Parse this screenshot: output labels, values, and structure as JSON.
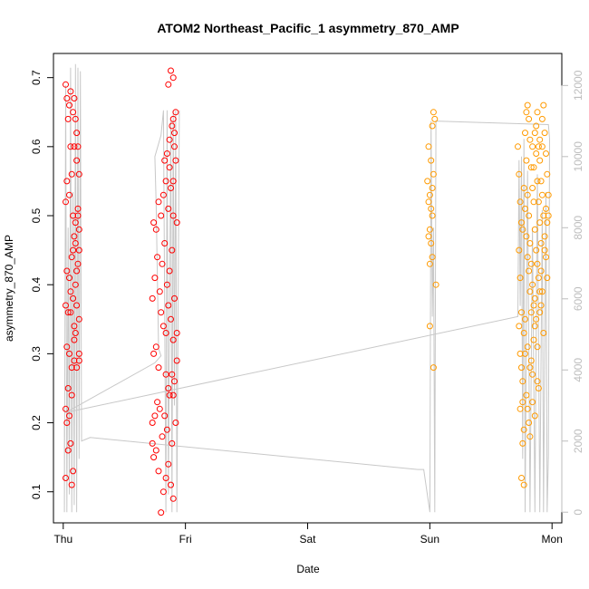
{
  "chart_data": {
    "type": "scatter",
    "title": "ATOM2 Northeast_Pacific_1 asymmetry_870_AMP",
    "xlabel": "Date",
    "ylabel": "asymmetry_870_AMP",
    "x_ticks": [
      "Thu",
      "Fri",
      "Sat",
      "Sun",
      "Mon"
    ],
    "x_range_days": [
      -0.08,
      4.08
    ],
    "ylim": [
      0.055,
      0.735
    ],
    "y_ticks": [
      0.1,
      0.2,
      0.3,
      0.4,
      0.5,
      0.6,
      0.7
    ],
    "y2lim": [
      -300,
      12900
    ],
    "y2_ticks": [
      0,
      2000,
      4000,
      6000,
      8000,
      10000,
      12000
    ],
    "colors": {
      "series_red": "#ff0000",
      "series_orange": "#ff9a00",
      "track": "#c8c8c8",
      "axis": "#000000",
      "axis_right": "#bdbdbd"
    },
    "series": [
      {
        "color": "#ff0000",
        "points": [
          [
            0.02,
            0.69
          ],
          [
            0.03,
            0.67
          ],
          [
            0.05,
            0.66
          ],
          [
            0.04,
            0.64
          ],
          [
            0.06,
            0.68
          ],
          [
            0.08,
            0.65
          ],
          [
            0.09,
            0.67
          ],
          [
            0.1,
            0.64
          ],
          [
            0.11,
            0.62
          ],
          [
            0.03,
            0.55
          ],
          [
            0.05,
            0.53
          ],
          [
            0.07,
            0.56
          ],
          [
            0.08,
            0.5
          ],
          [
            0.1,
            0.49
          ],
          [
            0.12,
            0.5
          ],
          [
            0.13,
            0.48
          ],
          [
            0.02,
            0.52
          ],
          [
            0.03,
            0.42
          ],
          [
            0.05,
            0.41
          ],
          [
            0.07,
            0.44
          ],
          [
            0.09,
            0.47
          ],
          [
            0.1,
            0.4
          ],
          [
            0.12,
            0.43
          ],
          [
            0.13,
            0.35
          ],
          [
            0.02,
            0.37
          ],
          [
            0.04,
            0.36
          ],
          [
            0.06,
            0.36
          ],
          [
            0.08,
            0.38
          ],
          [
            0.09,
            0.34
          ],
          [
            0.11,
            0.37
          ],
          [
            0.13,
            0.3
          ],
          [
            0.03,
            0.31
          ],
          [
            0.05,
            0.3
          ],
          [
            0.07,
            0.28
          ],
          [
            0.09,
            0.29
          ],
          [
            0.11,
            0.28
          ],
          [
            0.13,
            0.29
          ],
          [
            0.02,
            0.22
          ],
          [
            0.03,
            0.2
          ],
          [
            0.05,
            0.21
          ],
          [
            0.04,
            0.16
          ],
          [
            0.06,
            0.17
          ],
          [
            0.08,
            0.13
          ],
          [
            0.02,
            0.12
          ],
          [
            0.07,
            0.11
          ],
          [
            0.12,
            0.6
          ],
          [
            0.11,
            0.58
          ],
          [
            0.13,
            0.56
          ],
          [
            0.09,
            0.6
          ],
          [
            0.1,
            0.46
          ],
          [
            0.12,
            0.51
          ],
          [
            0.08,
            0.45
          ],
          [
            0.06,
            0.39
          ],
          [
            0.1,
            0.33
          ],
          [
            0.04,
            0.25
          ],
          [
            0.07,
            0.24
          ],
          [
            0.09,
            0.32
          ],
          [
            0.11,
            0.42
          ],
          [
            0.06,
            0.6
          ],
          [
            0.13,
            0.45
          ],
          [
            0.73,
            0.17
          ],
          [
            0.74,
            0.15
          ],
          [
            0.76,
            0.16
          ],
          [
            0.78,
            0.13
          ],
          [
            0.8,
            0.07
          ],
          [
            0.82,
            0.1
          ],
          [
            0.84,
            0.12
          ],
          [
            0.86,
            0.14
          ],
          [
            0.88,
            0.11
          ],
          [
            0.9,
            0.09
          ],
          [
            0.73,
            0.2
          ],
          [
            0.75,
            0.21
          ],
          [
            0.77,
            0.23
          ],
          [
            0.79,
            0.22
          ],
          [
            0.81,
            0.18
          ],
          [
            0.83,
            0.21
          ],
          [
            0.85,
            0.19
          ],
          [
            0.87,
            0.24
          ],
          [
            0.89,
            0.17
          ],
          [
            0.92,
            0.2
          ],
          [
            0.74,
            0.3
          ],
          [
            0.76,
            0.31
          ],
          [
            0.78,
            0.28
          ],
          [
            0.8,
            0.36
          ],
          [
            0.82,
            0.34
          ],
          [
            0.84,
            0.33
          ],
          [
            0.86,
            0.37
          ],
          [
            0.88,
            0.35
          ],
          [
            0.9,
            0.32
          ],
          [
            0.93,
            0.29
          ],
          [
            0.73,
            0.38
          ],
          [
            0.75,
            0.41
          ],
          [
            0.77,
            0.44
          ],
          [
            0.79,
            0.39
          ],
          [
            0.81,
            0.43
          ],
          [
            0.83,
            0.46
          ],
          [
            0.85,
            0.4
          ],
          [
            0.87,
            0.42
          ],
          [
            0.89,
            0.45
          ],
          [
            0.91,
            0.38
          ],
          [
            0.74,
            0.49
          ],
          [
            0.76,
            0.48
          ],
          [
            0.78,
            0.52
          ],
          [
            0.8,
            0.5
          ],
          [
            0.82,
            0.53
          ],
          [
            0.84,
            0.55
          ],
          [
            0.86,
            0.51
          ],
          [
            0.88,
            0.54
          ],
          [
            0.9,
            0.5
          ],
          [
            0.93,
            0.49
          ],
          [
            0.83,
            0.58
          ],
          [
            0.85,
            0.59
          ],
          [
            0.87,
            0.61
          ],
          [
            0.89,
            0.63
          ],
          [
            0.9,
            0.64
          ],
          [
            0.91,
            0.62
          ],
          [
            0.92,
            0.65
          ],
          [
            0.86,
            0.69
          ],
          [
            0.9,
            0.7
          ],
          [
            0.88,
            0.71
          ],
          [
            0.91,
            0.6
          ],
          [
            0.87,
            0.57
          ],
          [
            0.9,
            0.55
          ],
          [
            0.92,
            0.58
          ],
          [
            0.89,
            0.27
          ],
          [
            0.91,
            0.26
          ],
          [
            0.86,
            0.25
          ],
          [
            0.84,
            0.27
          ],
          [
            0.93,
            0.33
          ],
          [
            0.9,
            0.24
          ]
        ]
      },
      {
        "color": "#ff9a00",
        "points": [
          [
            2.98,
            0.55
          ],
          [
            2.99,
            0.52
          ],
          [
            3.0,
            0.53
          ],
          [
            3.01,
            0.51
          ],
          [
            3.02,
            0.5
          ],
          [
            3.0,
            0.48
          ],
          [
            3.01,
            0.46
          ],
          [
            2.99,
            0.47
          ],
          [
            3.02,
            0.44
          ],
          [
            3.0,
            0.43
          ],
          [
            3.01,
            0.58
          ],
          [
            2.99,
            0.6
          ],
          [
            3.03,
            0.56
          ],
          [
            3.02,
            0.63
          ],
          [
            3.03,
            0.65
          ],
          [
            3.04,
            0.64
          ],
          [
            3.0,
            0.34
          ],
          [
            3.05,
            0.4
          ],
          [
            3.03,
            0.28
          ],
          [
            3.02,
            0.54
          ],
          [
            3.72,
            0.6
          ],
          [
            3.73,
            0.56
          ],
          [
            3.74,
            0.52
          ],
          [
            3.75,
            0.49
          ],
          [
            3.73,
            0.45
          ],
          [
            3.74,
            0.41
          ],
          [
            3.75,
            0.36
          ],
          [
            3.73,
            0.34
          ],
          [
            3.74,
            0.3
          ],
          [
            3.75,
            0.28
          ],
          [
            3.76,
            0.26
          ],
          [
            3.77,
            0.19
          ],
          [
            3.76,
            0.17
          ],
          [
            3.75,
            0.12
          ],
          [
            3.77,
            0.11
          ],
          [
            3.78,
            0.62
          ],
          [
            3.79,
            0.58
          ],
          [
            3.8,
            0.53
          ],
          [
            3.81,
            0.5
          ],
          [
            3.82,
            0.46
          ],
          [
            3.83,
            0.43
          ],
          [
            3.84,
            0.4
          ],
          [
            3.85,
            0.37
          ],
          [
            3.86,
            0.34
          ],
          [
            3.79,
            0.65
          ],
          [
            3.8,
            0.66
          ],
          [
            3.81,
            0.64
          ],
          [
            3.82,
            0.61
          ],
          [
            3.83,
            0.57
          ],
          [
            3.84,
            0.54
          ],
          [
            3.85,
            0.52
          ],
          [
            3.86,
            0.48
          ],
          [
            3.87,
            0.45
          ],
          [
            3.88,
            0.43
          ],
          [
            3.89,
            0.41
          ],
          [
            3.9,
            0.39
          ],
          [
            3.91,
            0.37
          ],
          [
            3.87,
            0.63
          ],
          [
            3.88,
            0.65
          ],
          [
            3.89,
            0.6
          ],
          [
            3.9,
            0.58
          ],
          [
            3.91,
            0.55
          ],
          [
            3.92,
            0.53
          ],
          [
            3.93,
            0.5
          ],
          [
            3.94,
            0.47
          ],
          [
            3.95,
            0.44
          ],
          [
            3.96,
            0.41
          ],
          [
            3.92,
            0.64
          ],
          [
            3.93,
            0.66
          ],
          [
            3.94,
            0.62
          ],
          [
            3.95,
            0.59
          ],
          [
            3.96,
            0.56
          ],
          [
            3.97,
            0.53
          ],
          [
            3.77,
            0.33
          ],
          [
            3.78,
            0.3
          ],
          [
            3.79,
            0.24
          ],
          [
            3.8,
            0.22
          ],
          [
            3.81,
            0.2
          ],
          [
            3.82,
            0.18
          ],
          [
            3.83,
            0.29
          ],
          [
            3.84,
            0.27
          ],
          [
            3.85,
            0.32
          ],
          [
            3.86,
            0.38
          ],
          [
            3.87,
            0.35
          ],
          [
            3.88,
            0.31
          ],
          [
            3.89,
            0.25
          ],
          [
            3.9,
            0.36
          ],
          [
            3.91,
            0.42
          ],
          [
            3.92,
            0.39
          ],
          [
            3.93,
            0.33
          ],
          [
            3.94,
            0.45
          ],
          [
            3.95,
            0.51
          ],
          [
            3.96,
            0.49
          ],
          [
            3.97,
            0.5
          ],
          [
            3.76,
            0.48
          ],
          [
            3.77,
            0.54
          ],
          [
            3.78,
            0.51
          ],
          [
            3.79,
            0.47
          ],
          [
            3.8,
            0.44
          ],
          [
            3.81,
            0.42
          ],
          [
            3.82,
            0.39
          ],
          [
            3.83,
            0.36
          ],
          [
            3.84,
            0.6
          ],
          [
            3.85,
            0.57
          ],
          [
            3.86,
            0.62
          ],
          [
            3.87,
            0.59
          ],
          [
            3.88,
            0.55
          ],
          [
            3.89,
            0.52
          ],
          [
            3.9,
            0.49
          ],
          [
            3.91,
            0.46
          ],
          [
            3.74,
            0.22
          ],
          [
            3.76,
            0.23
          ],
          [
            3.78,
            0.35
          ],
          [
            3.8,
            0.31
          ],
          [
            3.82,
            0.28
          ],
          [
            3.84,
            0.23
          ],
          [
            3.86,
            0.21
          ],
          [
            3.88,
            0.26
          ],
          [
            3.9,
            0.61
          ],
          [
            3.92,
            0.6
          ]
        ]
      }
    ],
    "track": [
      [
        0.01,
        2500
      ],
      [
        0.01,
        0
      ],
      [
        0.02,
        12000
      ],
      [
        0.03,
        0
      ],
      [
        0.04,
        8000
      ],
      [
        0.05,
        500
      ],
      [
        0.06,
        12500
      ],
      [
        0.07,
        0
      ],
      [
        0.08,
        9000
      ],
      [
        0.09,
        200
      ],
      [
        0.1,
        12600
      ],
      [
        0.11,
        0
      ],
      [
        0.12,
        12500
      ],
      [
        0.13,
        1500
      ],
      [
        0.14,
        12400
      ],
      [
        0.15,
        2000
      ],
      [
        0.22,
        2100
      ],
      [
        2.9,
        1200
      ],
      [
        2.95,
        1200
      ],
      [
        3.0,
        0
      ],
      [
        3.01,
        11000
      ],
      [
        3.02,
        5500
      ],
      [
        3.03,
        8000
      ],
      [
        3.04,
        0
      ],
      [
        3.05,
        11000
      ],
      [
        3.97,
        10900
      ],
      [
        3.98,
        10500
      ],
      [
        3.97,
        1600
      ],
      [
        3.96,
        0
      ],
      [
        3.95,
        9000
      ],
      [
        3.93,
        0
      ],
      [
        3.92,
        8500
      ],
      [
        3.9,
        0
      ],
      [
        3.88,
        9500
      ],
      [
        3.86,
        0
      ],
      [
        3.84,
        8000
      ],
      [
        3.82,
        0
      ],
      [
        3.8,
        9600
      ],
      [
        3.78,
        0
      ],
      [
        3.77,
        10500
      ],
      [
        3.76,
        1500
      ],
      [
        3.75,
        10000
      ],
      [
        3.74,
        5800
      ],
      [
        3.73,
        9900
      ],
      [
        3.72,
        5500
      ],
      [
        0.02,
        2800
      ],
      [
        0.75,
        4200
      ],
      [
        0.8,
        4400
      ],
      [
        0.78,
        4600
      ],
      [
        0.76,
        8700
      ],
      [
        0.75,
        10000
      ],
      [
        0.8,
        10600
      ],
      [
        0.82,
        11300
      ],
      [
        0.84,
        0
      ],
      [
        0.85,
        11300
      ],
      [
        0.86,
        500
      ],
      [
        0.88,
        11000
      ],
      [
        0.89,
        0
      ],
      [
        0.9,
        11300
      ],
      [
        0.91,
        3000
      ],
      [
        0.92,
        11300
      ],
      [
        0.93,
        0
      ],
      [
        0.95,
        11300
      ]
    ]
  }
}
